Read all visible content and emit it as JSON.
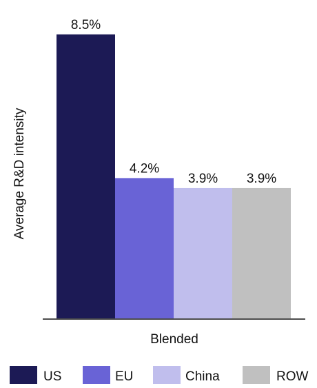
{
  "chart_data": {
    "type": "bar",
    "title": "",
    "xlabel": "Blended",
    "ylabel": "Average R&D intensity",
    "categories": [
      "Blended"
    ],
    "series": [
      {
        "name": "US",
        "values": [
          8.5
        ],
        "label": "8.5%",
        "color": "#1c1a55"
      },
      {
        "name": "EU",
        "values": [
          4.2
        ],
        "label": "4.2%",
        "color": "#6963d6"
      },
      {
        "name": "China",
        "values": [
          3.9
        ],
        "label": "3.9%",
        "color": "#c0beed"
      },
      {
        "name": "ROW",
        "values": [
          3.9
        ],
        "label": "3.9%",
        "color": "#c0c0c0"
      }
    ],
    "ylim": [
      0,
      9.2
    ],
    "unit": "%",
    "grid": false,
    "legend_position": "bottom"
  }
}
